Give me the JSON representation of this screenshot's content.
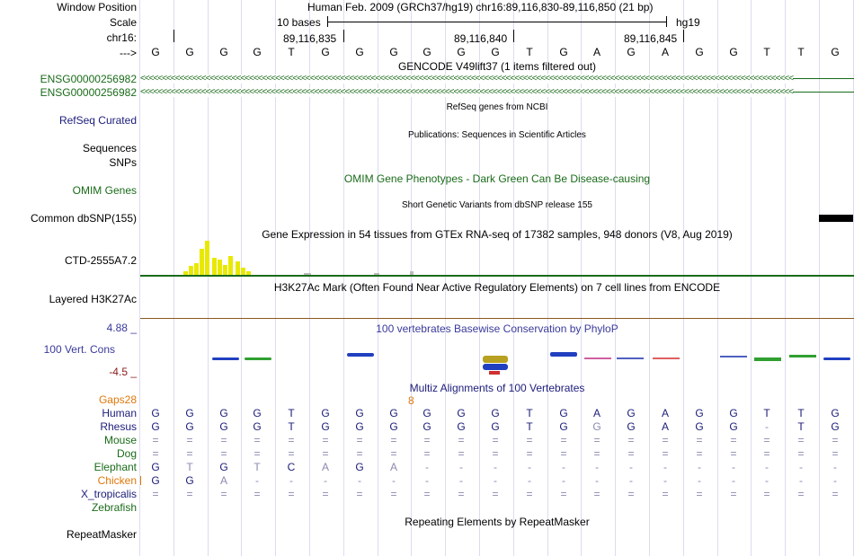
{
  "labels": {
    "window_position": "Window Position",
    "scale": "Scale",
    "chr": "chr16:",
    "arrow": "--->",
    "ensg1": "ENSG00000256982",
    "ensg2": "ENSG00000256982",
    "refseq": "RefSeq Curated",
    "sequences": "Sequences",
    "snps": "SNPs",
    "omim": "OMIM Genes",
    "dbsnp": "Common dbSNP(155)",
    "ctd": "CTD-2555A7.2",
    "h3k27ac": "Layered H3K27Ac",
    "cons_max": "4.88 _",
    "cons": "100 Vert. Cons",
    "cons_min": "-4.5 _",
    "gaps": "Gaps",
    "gaps_count": "28",
    "human": "Human",
    "rhesus": "Rhesus",
    "mouse": "Mouse",
    "dog": "Dog",
    "elephant": "Elephant",
    "chicken": "Chicken",
    "x_tropicalis": "X_tropicalis",
    "zebrafish": "Zebrafish",
    "repeatmasker": "RepeatMasker"
  },
  "header": {
    "position_text": "Human Feb. 2009 (GRCh37/hg19)   chr16:89,116,830-89,116,850 (21 bp)",
    "scale_text": "10 bases",
    "assembly": "hg19",
    "coord1": "89,116,835",
    "coord2": "89,116,840",
    "coord3": "89,116,845"
  },
  "sequence": [
    "G",
    "G",
    "G",
    "G",
    "T",
    "G",
    "G",
    "G",
    "G",
    "G",
    "G",
    "T",
    "G",
    "A",
    "G",
    "A",
    "G",
    "G",
    "T",
    "T",
    "G"
  ],
  "tracks": {
    "gencode": "GENCODE V49lift37 (1 items filtered out)",
    "refseq": "RefSeq genes from NCBI",
    "publications": "Publications: Sequences in Scientific Articles",
    "omim": "OMIM Gene Phenotypes - Dark Green Can Be Disease-causing",
    "dbsnp": "Short Genetic Variants from dbSNP release 155",
    "gtex": "Gene Expression in 54 tissues from GTEx RNA-seq of 17382 samples, 948 donors (V8, Aug 2019)",
    "h3k27ac": "H3K27Ac Mark (Often Found Near Active Regulatory Elements) on 7 cell lines from ENCODE",
    "phylop": "100 vertebrates Basewise Conservation by PhyloP",
    "multiz": "Multiz Alignments of 100 Vertebrates",
    "multiz_gap": "8",
    "repeatmasker": "Repeating Elements by RepeatMasker"
  },
  "alignment": {
    "human": [
      "G",
      "G",
      "G",
      "G",
      "T",
      "G",
      "G",
      "G",
      "G",
      "G",
      "G",
      "T",
      "G",
      "A",
      "G",
      "A",
      "G",
      "G",
      "T",
      "T",
      "G"
    ],
    "rhesus": [
      "G",
      "G",
      "G",
      "G",
      "T",
      "G",
      "G",
      "G",
      "G",
      "G",
      "G",
      "T",
      "G",
      "G",
      "G",
      "A",
      "G",
      "G",
      "-",
      "T",
      "G"
    ],
    "mouse": [
      "=",
      "=",
      "=",
      "=",
      "=",
      "=",
      "=",
      "=",
      "=",
      "=",
      "=",
      "=",
      "=",
      "=",
      "=",
      "=",
      "=",
      "=",
      "=",
      "=",
      "="
    ],
    "dog": [
      "=",
      "=",
      "=",
      "=",
      "=",
      "=",
      "=",
      "=",
      "=",
      "=",
      "=",
      "=",
      "=",
      "=",
      "=",
      "=",
      "=",
      "=",
      "=",
      "=",
      "="
    ],
    "elephant": [
      "G",
      "T",
      "G",
      "T",
      "C",
      "A",
      "G",
      "A",
      "-",
      "-",
      "-",
      "-",
      "-",
      "-",
      "-",
      "-",
      "-",
      "-",
      "-",
      "-",
      "-"
    ],
    "chicken": [
      "G",
      "G",
      "A",
      "-",
      "-",
      "-",
      "-",
      "-",
      "-",
      "-",
      "-",
      "-",
      "-",
      "-",
      "-",
      "-",
      "-",
      "-",
      "-",
      "-",
      "-"
    ],
    "x_tropicalis": [
      "=",
      "=",
      "=",
      "=",
      "=",
      "=",
      "=",
      "=",
      "=",
      "=",
      "=",
      "=",
      "=",
      "=",
      "=",
      "=",
      "=",
      "=",
      "=",
      "=",
      "="
    ]
  },
  "gtex_levels": [
    0.1,
    0.25,
    0.35,
    0.75,
    1.0,
    0.5,
    0.45,
    0.3,
    0.55,
    0.4,
    0.2,
    0.1
  ],
  "colors": {
    "gencode": "#1a6b1a",
    "refseq": "#1c1c7a",
    "gtex_bar": "#e8e800",
    "phylop": "#3a3a9c",
    "gaps": "#e0780a",
    "dbsnp_bar": "#000000"
  }
}
